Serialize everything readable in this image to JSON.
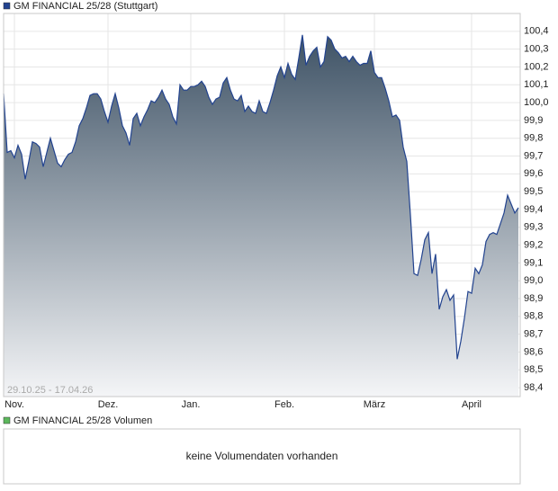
{
  "chart_data": {
    "type": "area",
    "series": [
      {
        "name": "GM FINANCIAL 25/28 (Stuttgart)",
        "color": "#22438f",
        "values": [
          100.05,
          99.72,
          99.73,
          99.69,
          99.76,
          99.71,
          99.57,
          99.67,
          99.78,
          99.77,
          99.75,
          99.64,
          99.72,
          99.8,
          99.73,
          99.66,
          99.64,
          99.68,
          99.71,
          99.72,
          99.78,
          99.87,
          99.91,
          99.97,
          100.04,
          100.05,
          100.05,
          100.02,
          99.95,
          99.89,
          99.98,
          100.05,
          99.97,
          99.87,
          99.83,
          99.76,
          99.91,
          99.94,
          99.87,
          99.92,
          99.96,
          100.01,
          100.0,
          100.03,
          100.07,
          100.02,
          99.99,
          99.92,
          99.88,
          100.1,
          100.07,
          100.07,
          100.09,
          100.09,
          100.1,
          100.12,
          100.09,
          100.03,
          99.99,
          100.02,
          100.03,
          100.11,
          100.14,
          100.07,
          100.02,
          100.01,
          100.04,
          99.95,
          99.98,
          99.95,
          99.94,
          100.01,
          99.95,
          99.94,
          100.0,
          100.07,
          100.15,
          100.2,
          100.14,
          100.22,
          100.16,
          100.13,
          100.25,
          100.38,
          100.21,
          100.26,
          100.29,
          100.31,
          100.2,
          100.23,
          100.37,
          100.35,
          100.3,
          100.28,
          100.25,
          100.26,
          100.23,
          100.26,
          100.23,
          100.21,
          100.22,
          100.22,
          100.29,
          100.17,
          100.14,
          100.14,
          100.08,
          100.01,
          99.92,
          99.93,
          99.9,
          99.75,
          99.67,
          99.37,
          99.04,
          99.03,
          99.12,
          99.23,
          99.27,
          99.04,
          99.15,
          98.84,
          98.91,
          98.95,
          98.89,
          98.92,
          98.56,
          98.66,
          98.79,
          98.94,
          98.93,
          99.07,
          99.04,
          99.09,
          99.22,
          99.26,
          99.27,
          99.26,
          99.32,
          99.38,
          99.48,
          99.43,
          99.38,
          99.41
        ]
      }
    ],
    "date_range": "29.10.25 - 17.04.26",
    "xlim": [
      0,
      143
    ],
    "xticks": [
      {
        "value": 3,
        "label": "Nov."
      },
      {
        "value": 29,
        "label": "Dez."
      },
      {
        "value": 52,
        "label": "Jan."
      },
      {
        "value": 78,
        "label": "Feb."
      },
      {
        "value": 103,
        "label": "März"
      },
      {
        "value": 130,
        "label": "April"
      }
    ],
    "ylim": [
      98.35,
      100.5
    ],
    "yticks": [
      {
        "value": 98.4,
        "label": "98,4"
      },
      {
        "value": 98.5,
        "label": "98,5"
      },
      {
        "value": 98.6,
        "label": "98,6"
      },
      {
        "value": 98.7,
        "label": "98,7"
      },
      {
        "value": 98.8,
        "label": "98,8"
      },
      {
        "value": 98.9,
        "label": "98,9"
      },
      {
        "value": 99.0,
        "label": "99,0"
      },
      {
        "value": 99.1,
        "label": "99,1"
      },
      {
        "value": 99.2,
        "label": "99,2"
      },
      {
        "value": 99.3,
        "label": "99,3"
      },
      {
        "value": 99.4,
        "label": "99,4"
      },
      {
        "value": 99.5,
        "label": "99,5"
      },
      {
        "value": 99.6,
        "label": "99,6"
      },
      {
        "value": 99.7,
        "label": "99,7"
      },
      {
        "value": 99.8,
        "label": "99,8"
      },
      {
        "value": 99.9,
        "label": "99,9"
      },
      {
        "value": 100.0,
        "label": "100,0"
      },
      {
        "value": 100.1,
        "label": "100,1"
      },
      {
        "value": 100.2,
        "label": "100,2"
      },
      {
        "value": 100.3,
        "label": "100,3"
      },
      {
        "value": 100.4,
        "label": "100,4"
      }
    ],
    "grid": true
  },
  "volume_panel": {
    "legend": "GM FINANCIAL 25/28 Volumen",
    "color": "#5cb85c",
    "message": "keine Volumendaten vorhanden"
  }
}
